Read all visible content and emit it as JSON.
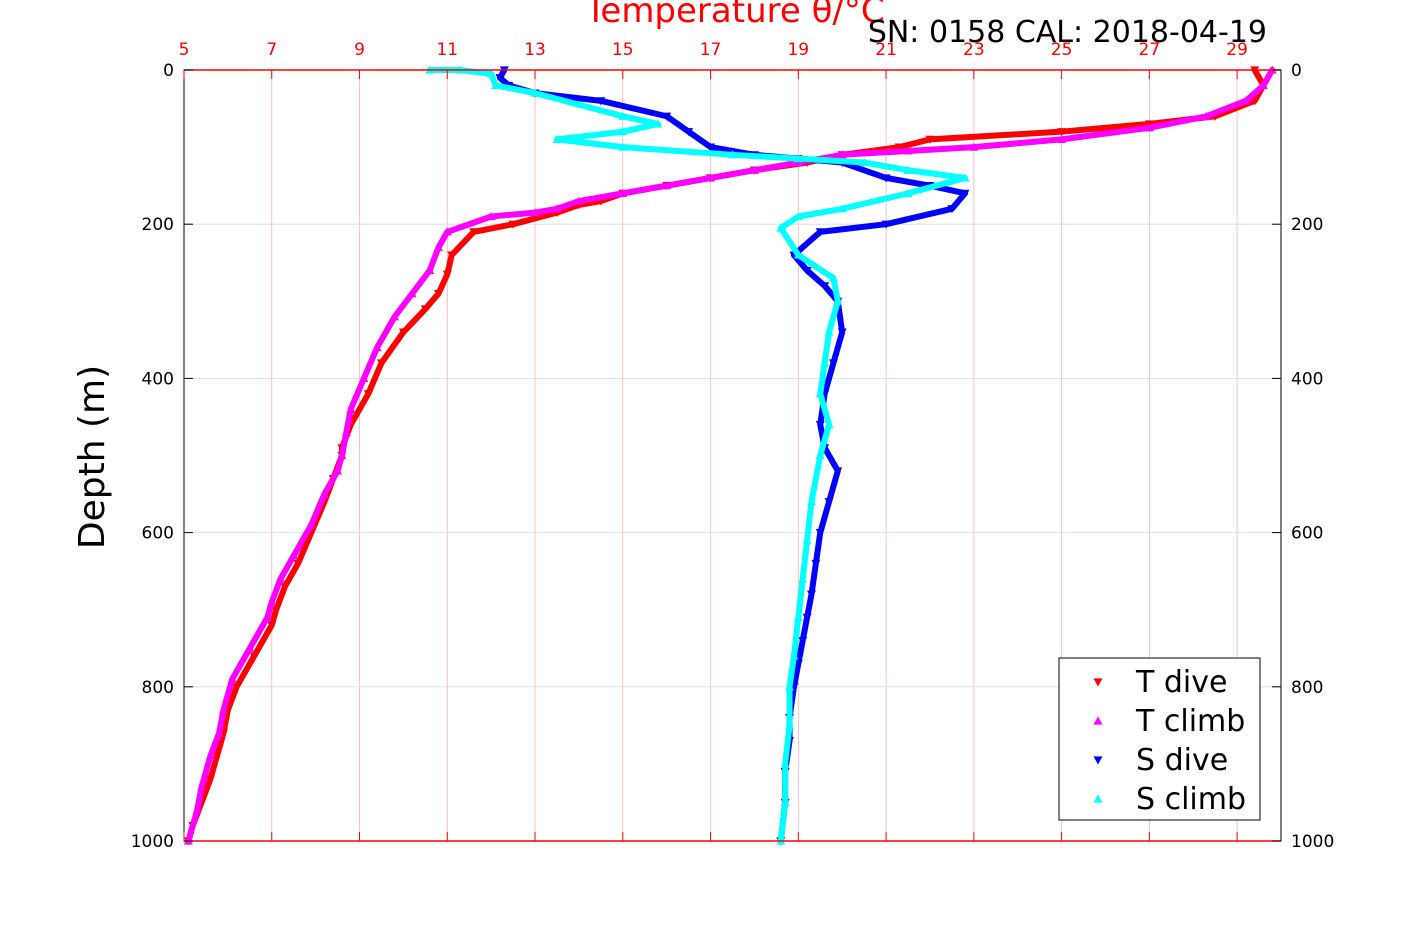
{
  "chart_data": {
    "type": "scatter",
    "title": "Temperature θ/°C",
    "subtitle": "SN: 0158  CAL: 2018-04-19",
    "ylabel": "Depth (m)",
    "x_ticks": [
      "5",
      "7",
      "9",
      "11",
      "13",
      "15",
      "17",
      "19",
      "21",
      "23",
      "25",
      "27",
      "29"
    ],
    "y_ticks": [
      "0",
      "200",
      "400",
      "600",
      "800",
      "1000"
    ],
    "xlim": [
      5,
      30
    ],
    "ylim": [
      1000,
      0
    ],
    "grid": true,
    "legend_position": "bottom-right",
    "colors": {
      "t_dive": "#ff0000",
      "t_climb": "#ff00ff",
      "s_dive": "#0000ff",
      "s_climb": "#00ffff",
      "axis_top": "#ff0000",
      "grid_x": "#ffb0b0",
      "grid_y": "#d9d9d9"
    },
    "series": [
      {
        "name": "T dive",
        "marker": "triangle-down",
        "x": [
          29.4,
          29.6,
          29.4,
          28.5,
          27.0,
          25.0,
          22.0,
          21.3,
          20.0,
          19.2,
          18.0,
          17.0,
          16.0,
          15.0,
          14.5,
          14.0,
          13.5,
          12.5,
          11.6,
          11.1,
          11.0,
          10.8,
          10.5,
          10.0,
          9.5,
          9.2,
          8.8,
          8.6,
          8.6,
          8.4,
          8.2,
          7.9,
          7.6,
          7.3,
          7.1,
          7.0,
          6.6,
          6.2,
          6.0,
          5.9,
          5.8,
          5.6,
          5.4,
          5.2,
          5.1
        ],
        "y": [
          0,
          20,
          40,
          60,
          70,
          80,
          90,
          100,
          110,
          120,
          130,
          140,
          150,
          160,
          170,
          175,
          185,
          200,
          210,
          240,
          265,
          290,
          310,
          340,
          380,
          420,
          460,
          490,
          500,
          530,
          560,
          600,
          640,
          670,
          700,
          720,
          760,
          800,
          830,
          860,
          880,
          920,
          950,
          980,
          1000
        ]
      },
      {
        "name": "T climb",
        "marker": "triangle-up",
        "x": [
          29.8,
          29.6,
          29.2,
          28.3,
          27.0,
          25.0,
          23.0,
          21.5,
          20.0,
          19.0,
          18.0,
          17.0,
          16.0,
          15.0,
          14.0,
          13.5,
          13.0,
          12.0,
          11.0,
          10.8,
          10.6,
          10.2,
          9.8,
          9.4,
          9.1,
          8.8,
          8.7,
          8.6,
          8.5,
          8.2,
          7.9,
          7.5,
          7.2,
          7.0,
          6.9,
          6.5,
          6.1,
          5.9,
          5.8,
          5.6,
          5.4,
          5.3,
          5.1
        ],
        "y": [
          0,
          20,
          40,
          60,
          75,
          90,
          100,
          105,
          110,
          120,
          130,
          140,
          150,
          160,
          170,
          180,
          185,
          190,
          210,
          230,
          260,
          290,
          320,
          360,
          400,
          440,
          470,
          500,
          520,
          550,
          590,
          630,
          660,
          690,
          710,
          750,
          790,
          830,
          860,
          890,
          930,
          960,
          1000
        ]
      },
      {
        "name": "S dive",
        "marker": "triangle-down",
        "x": [
          12.3,
          12.2,
          12.4,
          13.0,
          14.5,
          16.0,
          16.5,
          17.0,
          18.0,
          19.0,
          20.0,
          21.0,
          22.0,
          22.8,
          22.5,
          21.0,
          19.5,
          18.9,
          19.2,
          19.6,
          19.9,
          20.0,
          19.8,
          19.6,
          19.5,
          19.6,
          19.9,
          19.7,
          19.5,
          19.4,
          19.3,
          19.2,
          19.1,
          19.0,
          18.9,
          18.8,
          18.8,
          18.7,
          18.7,
          18.6
        ],
        "y": [
          0,
          10,
          20,
          30,
          40,
          60,
          80,
          100,
          110,
          115,
          120,
          140,
          150,
          160,
          180,
          200,
          210,
          240,
          260,
          280,
          300,
          340,
          380,
          420,
          460,
          490,
          520,
          560,
          600,
          640,
          680,
          710,
          740,
          770,
          800,
          840,
          870,
          910,
          950,
          1000
        ]
      },
      {
        "name": "S climb",
        "marker": "triangle-up",
        "x": [
          10.6,
          11.3,
          12.0,
          12.1,
          13.0,
          15.0,
          15.8,
          15.0,
          13.5,
          15.0,
          17.5,
          19.0,
          20.5,
          21.5,
          22.8,
          21.5,
          20.0,
          19.0,
          18.6,
          19.0,
          19.8,
          19.9,
          19.7,
          19.6,
          19.5,
          19.7,
          19.5,
          19.3,
          19.2,
          19.1,
          19.0,
          18.9,
          18.8,
          18.8,
          18.7,
          18.7,
          18.6
        ],
        "y": [
          0,
          0,
          5,
          20,
          30,
          60,
          70,
          80,
          90,
          100,
          110,
          115,
          120,
          130,
          140,
          160,
          180,
          190,
          205,
          240,
          270,
          300,
          340,
          380,
          420,
          460,
          500,
          560,
          610,
          660,
          710,
          760,
          800,
          850,
          900,
          950,
          1000
        ]
      }
    ]
  }
}
